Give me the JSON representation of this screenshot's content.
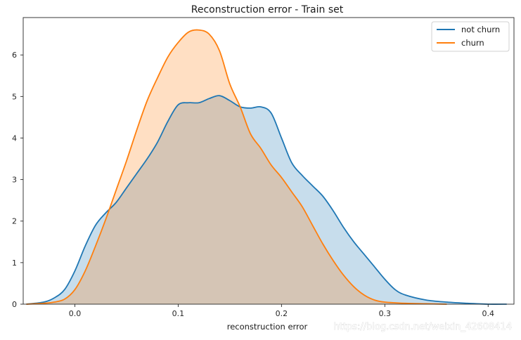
{
  "watermark": "https://blog.csdn.net/weixin_42608414",
  "colors": {
    "not_churn": "#1f77b4",
    "churn": "#ff7f0e"
  },
  "chart_data": {
    "type": "area",
    "title": "Reconstruction error - Train set",
    "xlabel": "reconstruction error",
    "ylabel": "",
    "xlim": [
      -0.05,
      0.425
    ],
    "ylim": [
      0,
      6.9
    ],
    "xticks": [
      0.0,
      0.1,
      0.2,
      0.3,
      0.4
    ],
    "xtick_labels": [
      "0.0",
      "0.1",
      "0.2",
      "0.3",
      "0.4"
    ],
    "yticks": [
      0,
      1,
      2,
      3,
      4,
      5,
      6
    ],
    "ytick_labels": [
      "0",
      "1",
      "2",
      "3",
      "4",
      "5",
      "6"
    ],
    "grid": false,
    "legend_position": "top-right",
    "series": [
      {
        "name": "not churn",
        "x": [
          -0.047,
          -0.03,
          -0.02,
          -0.01,
          0.0,
          0.01,
          0.02,
          0.03,
          0.04,
          0.05,
          0.06,
          0.07,
          0.08,
          0.09,
          0.1,
          0.11,
          0.12,
          0.13,
          0.14,
          0.15,
          0.16,
          0.17,
          0.18,
          0.19,
          0.2,
          0.21,
          0.22,
          0.23,
          0.24,
          0.25,
          0.26,
          0.27,
          0.28,
          0.29,
          0.3,
          0.31,
          0.32,
          0.34,
          0.36,
          0.38,
          0.4,
          0.418
        ],
        "y": [
          0.0,
          0.05,
          0.15,
          0.35,
          0.8,
          1.4,
          1.9,
          2.2,
          2.45,
          2.8,
          3.15,
          3.5,
          3.9,
          4.4,
          4.8,
          4.85,
          4.85,
          4.95,
          5.02,
          4.9,
          4.75,
          4.72,
          4.75,
          4.6,
          4.0,
          3.4,
          3.1,
          2.85,
          2.6,
          2.25,
          1.85,
          1.5,
          1.2,
          0.9,
          0.6,
          0.35,
          0.22,
          0.1,
          0.05,
          0.02,
          0.0,
          0.0
        ]
      },
      {
        "name": "churn",
        "x": [
          -0.047,
          -0.03,
          -0.02,
          -0.01,
          0.0,
          0.01,
          0.02,
          0.03,
          0.04,
          0.05,
          0.06,
          0.07,
          0.08,
          0.09,
          0.1,
          0.11,
          0.12,
          0.13,
          0.14,
          0.15,
          0.16,
          0.17,
          0.18,
          0.19,
          0.2,
          0.21,
          0.22,
          0.23,
          0.24,
          0.25,
          0.26,
          0.27,
          0.28,
          0.29,
          0.3,
          0.32,
          0.34,
          0.36
        ],
        "y": [
          0.0,
          0.02,
          0.05,
          0.12,
          0.35,
          0.8,
          1.4,
          2.05,
          2.75,
          3.45,
          4.2,
          4.9,
          5.45,
          5.95,
          6.3,
          6.55,
          6.6,
          6.5,
          6.1,
          5.3,
          4.75,
          4.1,
          3.75,
          3.35,
          3.05,
          2.7,
          2.35,
          1.9,
          1.45,
          1.05,
          0.7,
          0.42,
          0.22,
          0.1,
          0.05,
          0.02,
          0.01,
          0.0
        ]
      }
    ]
  }
}
